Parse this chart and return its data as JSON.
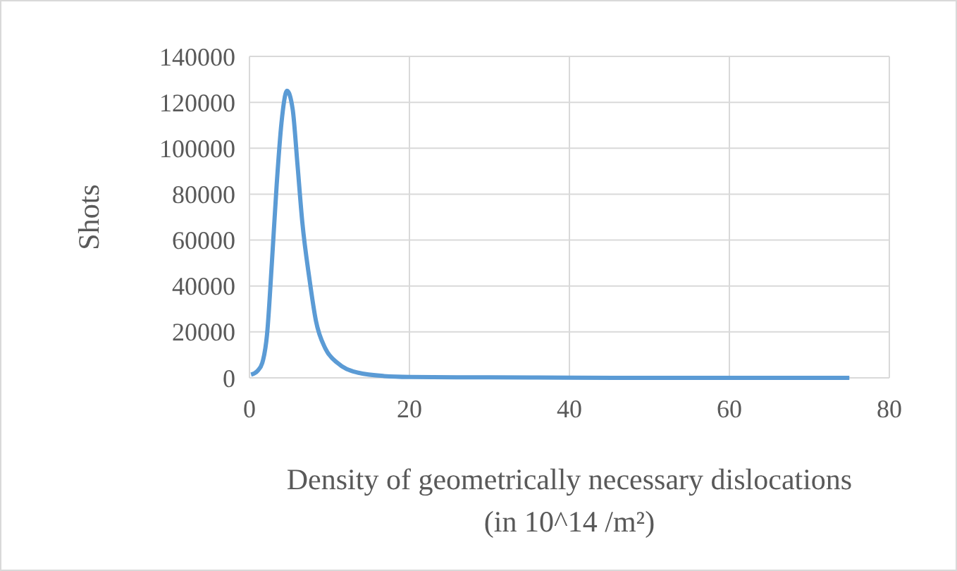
{
  "chart_data": {
    "type": "line",
    "xlabel": "Density of geometrically necessary dislocations\n(in 10^14 /m²)",
    "ylabel": "Shots",
    "x": [
      0.2,
      1,
      1.6,
      2.2,
      2.8,
      3.4,
      4,
      4.7,
      5.4,
      6,
      6.6,
      7.5,
      8.3,
      9.5,
      11,
      13.3,
      16.8,
      20,
      30,
      40,
      50,
      60,
      75
    ],
    "series": [
      {
        "color": "#5b9bd5",
        "values": [
          1400,
          3000,
          6500,
          19000,
          50000,
          84000,
          111000,
          125000,
          117000,
          93000,
          68000,
          43000,
          25000,
          12700,
          6500,
          2500,
          800,
          400,
          200,
          100,
          0,
          0,
          0
        ]
      }
    ],
    "xlim": [
      0,
      80
    ],
    "xticks": [
      0,
      20,
      40,
      60,
      80
    ],
    "ylim": [
      0,
      140000
    ],
    "yticks": [
      0,
      20000,
      40000,
      60000,
      80000,
      100000,
      120000,
      140000
    ],
    "grid": true,
    "marker": "none",
    "line_style": "solid"
  }
}
